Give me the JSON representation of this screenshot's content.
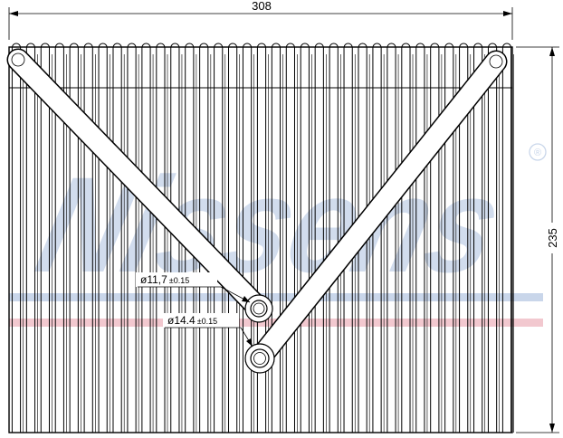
{
  "drawing": {
    "width_label": "308",
    "height_label": "235",
    "inlet_diameter": {
      "main": "ø11,7",
      "tolerance": "±0.15"
    },
    "outlet_diameter": {
      "main": "ø14.4",
      "tolerance": "±0.15"
    }
  },
  "watermark": {
    "text": "Nissens",
    "registered_mark": "®",
    "colors": {
      "blue": "#c9d6ea",
      "red": "#f2c8cf"
    }
  },
  "colors": {
    "line": "#000000",
    "fill": "#ffffff"
  }
}
